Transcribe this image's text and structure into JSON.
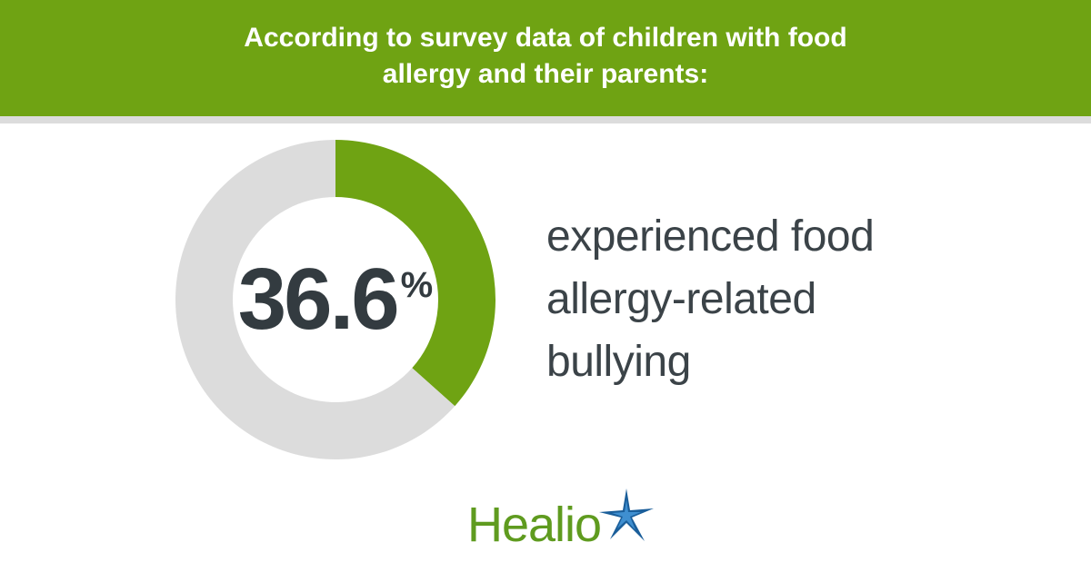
{
  "header": {
    "title": "According to survey data of children with food allergy and their parents:"
  },
  "stat": {
    "number": "36.6",
    "unit": "%",
    "description": "experienced food allergy-related bullying"
  },
  "brand": {
    "name": "Healio",
    "icon": "star-burst-icon"
  },
  "colors": {
    "accent": "#6fa313",
    "track": "#dcdcdc",
    "text": "#333b40",
    "brand_green": "#5f9b1f",
    "brand_blue": "#1a5e9a"
  },
  "chart_data": {
    "type": "pie",
    "values": [
      36.6,
      63.4
    ],
    "colors": [
      "#6fa313",
      "#dcdcdc"
    ]
  }
}
